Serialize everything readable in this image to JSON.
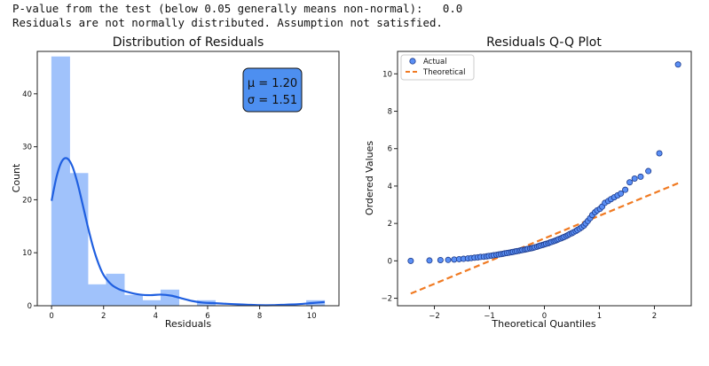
{
  "console": {
    "line1": "P-value from the test (below 0.05 generally means non-normal):   0.0",
    "line2": "Residuals are not normally distributed. Assumption not satisfied."
  },
  "colors": {
    "hist_bar": "#a0c2fb",
    "kde_line": "#1f5fe0",
    "stats_box_fill": "#4d8ff0",
    "qq_point_fill": "#5a8ff5",
    "qq_point_edge": "#1d3a8a",
    "qq_line": "#f07a22"
  },
  "chart_data": [
    {
      "type": "bar",
      "title": "Distribution of Residuals",
      "xlabel": "Residuals",
      "ylabel": "Count",
      "xlim": [
        -0.55,
        11.05
      ],
      "ylim": [
        0,
        48
      ],
      "xticks": [
        0,
        2,
        4,
        6,
        8,
        10
      ],
      "yticks": [
        0,
        10,
        20,
        30,
        40
      ],
      "bin_width": 0.7,
      "bin_edges": [
        0.0,
        0.7,
        1.4,
        2.1,
        2.8,
        3.5,
        4.2,
        4.9,
        5.6,
        6.3,
        7.0,
        7.7,
        8.4,
        9.1,
        9.8,
        10.5
      ],
      "counts": [
        47,
        25,
        4,
        6,
        2,
        1,
        3,
        0,
        1,
        0,
        0,
        0,
        0,
        0,
        1
      ],
      "kde": {
        "x": [
          0.0,
          0.2,
          0.4,
          0.6,
          0.8,
          1.0,
          1.2,
          1.4,
          1.6,
          1.8,
          2.0,
          2.3,
          2.6,
          3.0,
          3.4,
          3.8,
          4.2,
          4.6,
          5.0,
          5.4,
          5.8,
          6.2,
          6.6,
          7.0,
          7.5,
          8.0,
          8.5,
          9.0,
          9.5,
          10.0,
          10.5
        ],
        "y": [
          19.8,
          24.5,
          27.3,
          27.8,
          26.3,
          23.1,
          19.0,
          14.8,
          11.0,
          8.0,
          5.8,
          4.0,
          3.1,
          2.5,
          2.1,
          2.0,
          2.1,
          1.9,
          1.4,
          0.9,
          0.6,
          0.5,
          0.4,
          0.3,
          0.2,
          0.1,
          0.1,
          0.2,
          0.3,
          0.5,
          0.7
        ]
      },
      "stats": {
        "mu": "μ = 1.20",
        "sigma": "σ = 1.51"
      }
    },
    {
      "type": "scatter",
      "title": "Residuals Q-Q Plot",
      "xlabel": "Theoretical Quantiles",
      "ylabel": "Ordered Values",
      "xlim": [
        -2.67,
        2.67
      ],
      "ylim": [
        -2.4,
        11.2
      ],
      "xticks": [
        -2,
        -1,
        0,
        1,
        2
      ],
      "yticks": [
        -2,
        0,
        2,
        4,
        6,
        8,
        10
      ],
      "legend": [
        "Actual",
        "Theoretical"
      ],
      "legend_loc": "upper-left",
      "theoretical_line": {
        "x": [
          -2.43,
          2.43
        ],
        "y": [
          -1.75,
          4.15
        ]
      },
      "points": {
        "x": [
          -2.43,
          -2.09,
          -1.89,
          -1.75,
          -1.64,
          -1.55,
          -1.47,
          -1.39,
          -1.33,
          -1.27,
          -1.21,
          -1.16,
          -1.1,
          -1.05,
          -1.01,
          -0.96,
          -0.92,
          -0.87,
          -0.83,
          -0.79,
          -0.75,
          -0.72,
          -0.68,
          -0.64,
          -0.6,
          -0.57,
          -0.53,
          -0.5,
          -0.46,
          -0.43,
          -0.4,
          -0.36,
          -0.33,
          -0.3,
          -0.26,
          -0.23,
          -0.2,
          -0.17,
          -0.13,
          -0.1,
          -0.07,
          -0.03,
          0.0,
          0.03,
          0.07,
          0.1,
          0.13,
          0.17,
          0.2,
          0.23,
          0.26,
          0.3,
          0.33,
          0.36,
          0.4,
          0.43,
          0.46,
          0.5,
          0.53,
          0.57,
          0.6,
          0.64,
          0.68,
          0.72,
          0.75,
          0.79,
          0.83,
          0.87,
          0.92,
          0.96,
          1.01,
          1.05,
          1.1,
          1.16,
          1.21,
          1.27,
          1.33,
          1.39,
          1.47,
          1.55,
          1.64,
          1.75,
          1.89,
          2.09,
          2.43
        ],
        "y": [
          0.0,
          0.02,
          0.04,
          0.05,
          0.07,
          0.09,
          0.11,
          0.13,
          0.15,
          0.17,
          0.19,
          0.21,
          0.22,
          0.24,
          0.26,
          0.28,
          0.3,
          0.32,
          0.34,
          0.36,
          0.38,
          0.4,
          0.42,
          0.44,
          0.46,
          0.48,
          0.5,
          0.52,
          0.54,
          0.56,
          0.58,
          0.6,
          0.62,
          0.64,
          0.66,
          0.68,
          0.7,
          0.73,
          0.76,
          0.79,
          0.82,
          0.85,
          0.88,
          0.91,
          0.94,
          0.98,
          1.01,
          1.05,
          1.08,
          1.12,
          1.16,
          1.2,
          1.24,
          1.28,
          1.33,
          1.38,
          1.43,
          1.48,
          1.53,
          1.59,
          1.65,
          1.72,
          1.8,
          1.89,
          2.0,
          2.13,
          2.28,
          2.45,
          2.6,
          2.7,
          2.78,
          2.9,
          3.1,
          3.2,
          3.3,
          3.4,
          3.5,
          3.6,
          3.8,
          4.2,
          4.4,
          4.5,
          4.8,
          5.75,
          10.5
        ]
      }
    }
  ]
}
